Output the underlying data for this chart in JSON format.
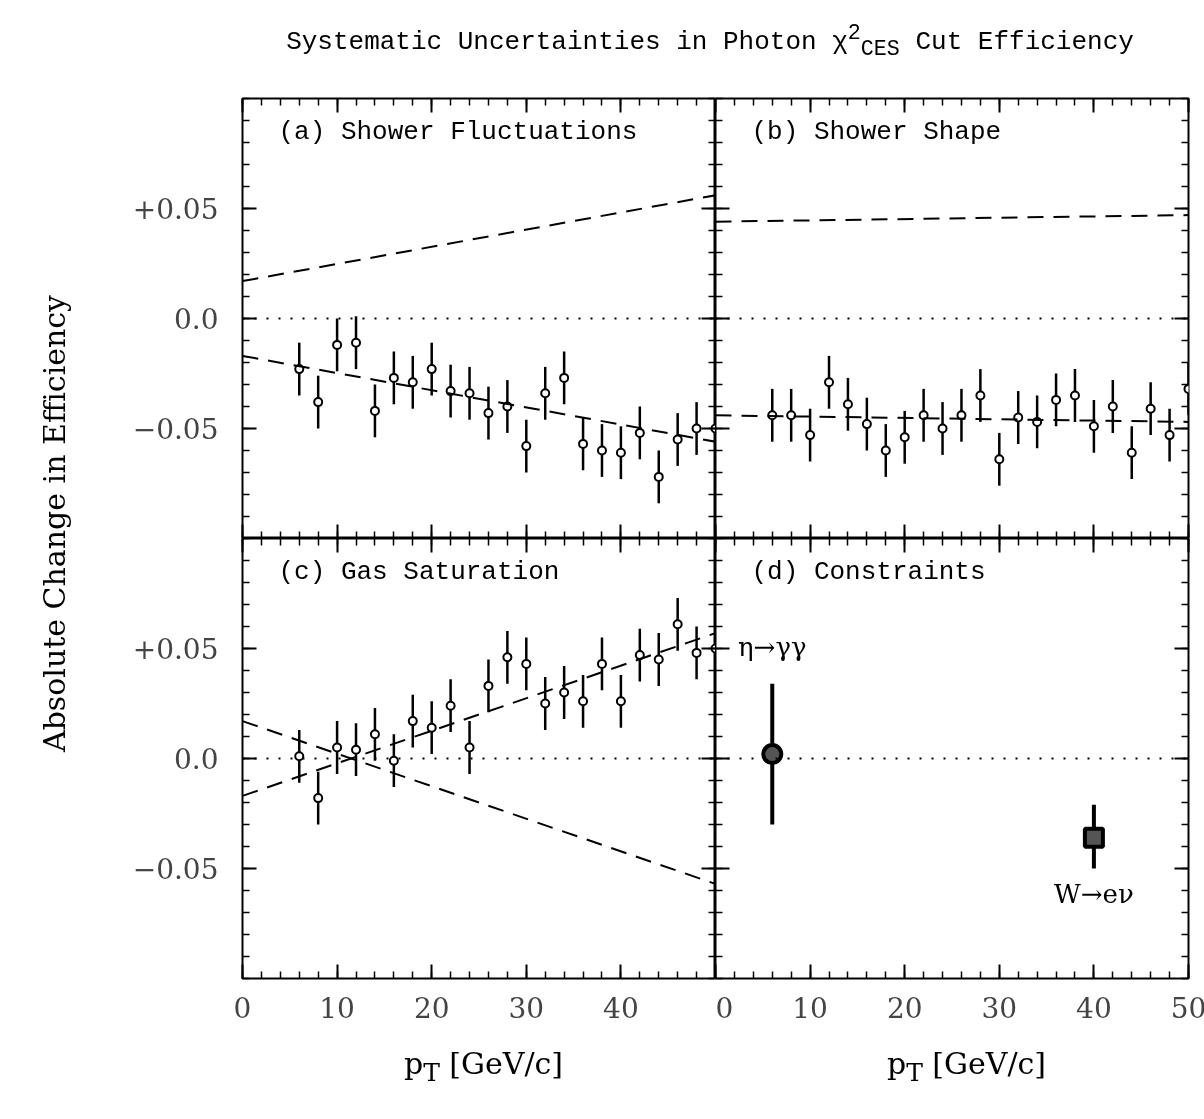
{
  "chart_data": [
    {
      "type": "scatter",
      "title": "Systematic Uncertainties in Photon χ$^{2}$$_{CES}$ Cut Efficiency",
      "ylabel": "Absolute Change in Efficiency",
      "annotations": [
        "(a) Shower Fluctuations"
      ],
      "xlim": [
        0,
        50
      ],
      "ylim": [
        -0.1,
        0.1
      ],
      "xticks": [
        0,
        10,
        20,
        30,
        40,
        50
      ],
      "yticks": [
        {
          "value": -0.05,
          "label": "−0.05"
        },
        {
          "value": 0,
          "label": "0.0"
        },
        {
          "value": 0.05,
          "label": "+0.05"
        }
      ],
      "tick_labels": "y",
      "ref_lines": [
        {
          "axis": "y",
          "value": 0,
          "line_style": "dotted",
          "color": "#000000"
        }
      ],
      "series": [
        {
          "type": "scatter",
          "marker": "circle",
          "color": "#000000",
          "x": [
            6,
            8,
            10,
            12,
            14,
            16,
            18,
            20,
            22,
            24,
            26,
            28,
            30,
            32,
            34,
            36,
            38,
            40,
            42,
            44,
            46,
            48,
            50
          ],
          "values": [
            -0.023,
            -0.038,
            -0.012,
            -0.011,
            -0.042,
            -0.027,
            -0.029,
            -0.023,
            -0.033,
            -0.034,
            -0.043,
            -0.04,
            -0.058,
            -0.034,
            -0.027,
            -0.057,
            -0.06,
            -0.061,
            -0.052,
            -0.072,
            -0.055,
            -0.05,
            -0.05
          ],
          "errors": [
            0.012,
            0.012,
            0.012,
            0.012,
            0.012,
            0.012,
            0.012,
            0.012,
            0.012,
            0.012,
            0.012,
            0.012,
            0.012,
            0.012,
            0.012,
            0.012,
            0.012,
            0.012,
            0.012,
            0.012,
            0.012,
            0.012,
            0.012
          ]
        },
        {
          "type": "line",
          "line_style": "dashed",
          "color": "#000000",
          "x": [
            0,
            50
          ],
          "values": [
            0.017,
            0.056
          ]
        },
        {
          "type": "line",
          "line_style": "dashed",
          "color": "#000000",
          "x": [
            0,
            50
          ],
          "values": [
            -0.017,
            -0.056
          ]
        }
      ]
    },
    {
      "type": "scatter",
      "annotations": [
        "(b) Shower Shape"
      ],
      "xlim": [
        0,
        50
      ],
      "ylim": [
        -0.1,
        0.1
      ],
      "xticks": [
        0,
        10,
        20,
        30,
        40,
        50
      ],
      "yticks": [
        -0.05,
        0,
        0.05
      ],
      "tick_labels": false,
      "ref_lines": [
        {
          "axis": "y",
          "value": 0,
          "line_style": "dotted",
          "color": "#000000"
        }
      ],
      "series": [
        {
          "type": "scatter",
          "marker": "circle",
          "color": "#000000",
          "x": [
            6,
            8,
            10,
            12,
            14,
            16,
            18,
            20,
            22,
            24,
            26,
            28,
            30,
            32,
            34,
            36,
            38,
            40,
            42,
            44,
            46,
            48,
            50
          ],
          "values": [
            -0.044,
            -0.044,
            -0.053,
            -0.029,
            -0.039,
            -0.048,
            -0.06,
            -0.054,
            -0.044,
            -0.05,
            -0.044,
            -0.035,
            -0.064,
            -0.045,
            -0.047,
            -0.037,
            -0.035,
            -0.049,
            -0.04,
            -0.061,
            -0.041,
            -0.053,
            -0.032
          ],
          "errors": [
            0.012,
            0.012,
            0.012,
            0.012,
            0.012,
            0.012,
            0.012,
            0.012,
            0.012,
            0.012,
            0.012,
            0.012,
            0.012,
            0.012,
            0.012,
            0.012,
            0.012,
            0.012,
            0.012,
            0.012,
            0.012,
            0.012,
            0.012
          ]
        },
        {
          "type": "line",
          "line_style": "dashed",
          "color": "#000000",
          "x": [
            0,
            50
          ],
          "values": [
            0.044,
            0.047
          ]
        },
        {
          "type": "line",
          "line_style": "dashed",
          "color": "#000000",
          "x": [
            0,
            50
          ],
          "values": [
            -0.044,
            -0.047
          ]
        }
      ]
    },
    {
      "type": "scatter",
      "xlabel": "p$_{T}$ [GeV/c]",
      "annotations": [
        "(c) Gas Saturation"
      ],
      "xlim": [
        0,
        50
      ],
      "ylim": [
        -0.1,
        0.1
      ],
      "xticks": [
        0,
        10,
        20,
        30,
        40
      ],
      "yticks": [
        {
          "value": -0.05,
          "label": "−0.05"
        },
        {
          "value": 0,
          "label": "0.0"
        },
        {
          "value": 0.05,
          "label": "+0.05"
        }
      ],
      "ref_lines": [
        {
          "axis": "y",
          "value": 0,
          "line_style": "dotted",
          "color": "#000000"
        }
      ],
      "series": [
        {
          "type": "scatter",
          "marker": "circle",
          "color": "#000000",
          "x": [
            6,
            8,
            10,
            12,
            14,
            16,
            18,
            20,
            22,
            24,
            26,
            28,
            30,
            32,
            34,
            36,
            38,
            40,
            42,
            44,
            46,
            48,
            50
          ],
          "values": [
            0.001,
            -0.018,
            0.005,
            0.004,
            0.011,
            -0.001,
            0.017,
            0.014,
            0.024,
            0.005,
            0.033,
            0.046,
            0.043,
            0.025,
            0.03,
            0.026,
            0.043,
            0.026,
            0.047,
            0.045,
            0.061,
            0.048,
            0.05
          ],
          "errors": [
            0.012,
            0.012,
            0.012,
            0.012,
            0.012,
            0.012,
            0.012,
            0.012,
            0.012,
            0.012,
            0.012,
            0.012,
            0.012,
            0.012,
            0.012,
            0.012,
            0.012,
            0.012,
            0.012,
            0.012,
            0.012,
            0.012,
            0.012
          ]
        },
        {
          "type": "line",
          "line_style": "dashed",
          "color": "#000000",
          "x": [
            0,
            50
          ],
          "values": [
            0.017,
            -0.057
          ]
        },
        {
          "type": "line",
          "line_style": "dashed",
          "color": "#000000",
          "x": [
            0,
            50
          ],
          "values": [
            -0.017,
            0.057
          ]
        }
      ]
    },
    {
      "type": "scatter",
      "xlabel": "p$_{T}$ [GeV/c]",
      "annotations": [
        "(d) Constraints",
        {
          "text": "η→γγ",
          "x": 6,
          "y": 0.034
        },
        {
          "text": "W→eν",
          "x": 40,
          "y": -0.05
        }
      ],
      "xlim": [
        0,
        50
      ],
      "ylim": [
        -0.1,
        0.1
      ],
      "xticks": [
        0,
        10,
        20,
        30,
        40,
        50
      ],
      "yticks": [
        -0.05,
        0,
        0.05
      ],
      "tick_labels": "x",
      "ref_lines": [
        {
          "axis": "y",
          "value": 0,
          "line_style": "dotted",
          "color": "#000000"
        }
      ],
      "series": [
        {
          "type": "scatter",
          "marker": "circle",
          "color": "#000000",
          "x": [
            6
          ],
          "values": [
            0.002
          ],
          "errors": [
            [
              -0.03,
              0.034
            ]
          ]
        },
        {
          "type": "scatter",
          "marker": "square",
          "color": "#000000",
          "x": [
            40
          ],
          "values": [
            -0.036
          ],
          "errors": [
            [
              -0.05,
              -0.021
            ]
          ]
        }
      ]
    }
  ]
}
